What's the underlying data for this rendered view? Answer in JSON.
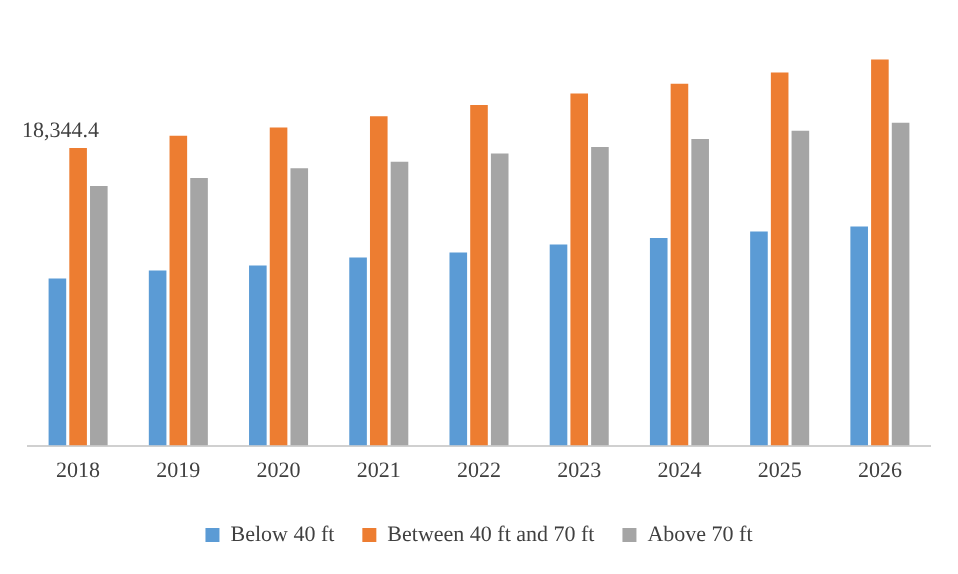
{
  "chart_data": {
    "type": "bar",
    "categories": [
      "2018",
      "2019",
      "2020",
      "2021",
      "2022",
      "2023",
      "2024",
      "2025",
      "2026"
    ],
    "series": [
      {
        "name": "Below 40 ft",
        "color": "#5b9bd5",
        "values": [
          10300,
          10800,
          11100,
          11600,
          11900,
          12400,
          12800,
          13200,
          13500
        ]
      },
      {
        "name": "Between 40 ft and 70 ft",
        "color": "#ed7d31",
        "values": [
          18344.4,
          19100,
          19600,
          20300,
          21000,
          21700,
          22300,
          23000,
          23800
        ],
        "value_labels": [
          "18,344.4",
          null,
          null,
          null,
          null,
          null,
          null,
          null,
          null
        ]
      },
      {
        "name": "Above 70 ft",
        "color": "#a5a5a5",
        "values": [
          16000,
          16500,
          17100,
          17500,
          18000,
          18400,
          18900,
          19400,
          19900
        ]
      }
    ],
    "legend": "bottom",
    "grid": false,
    "tick_labels": "x"
  }
}
